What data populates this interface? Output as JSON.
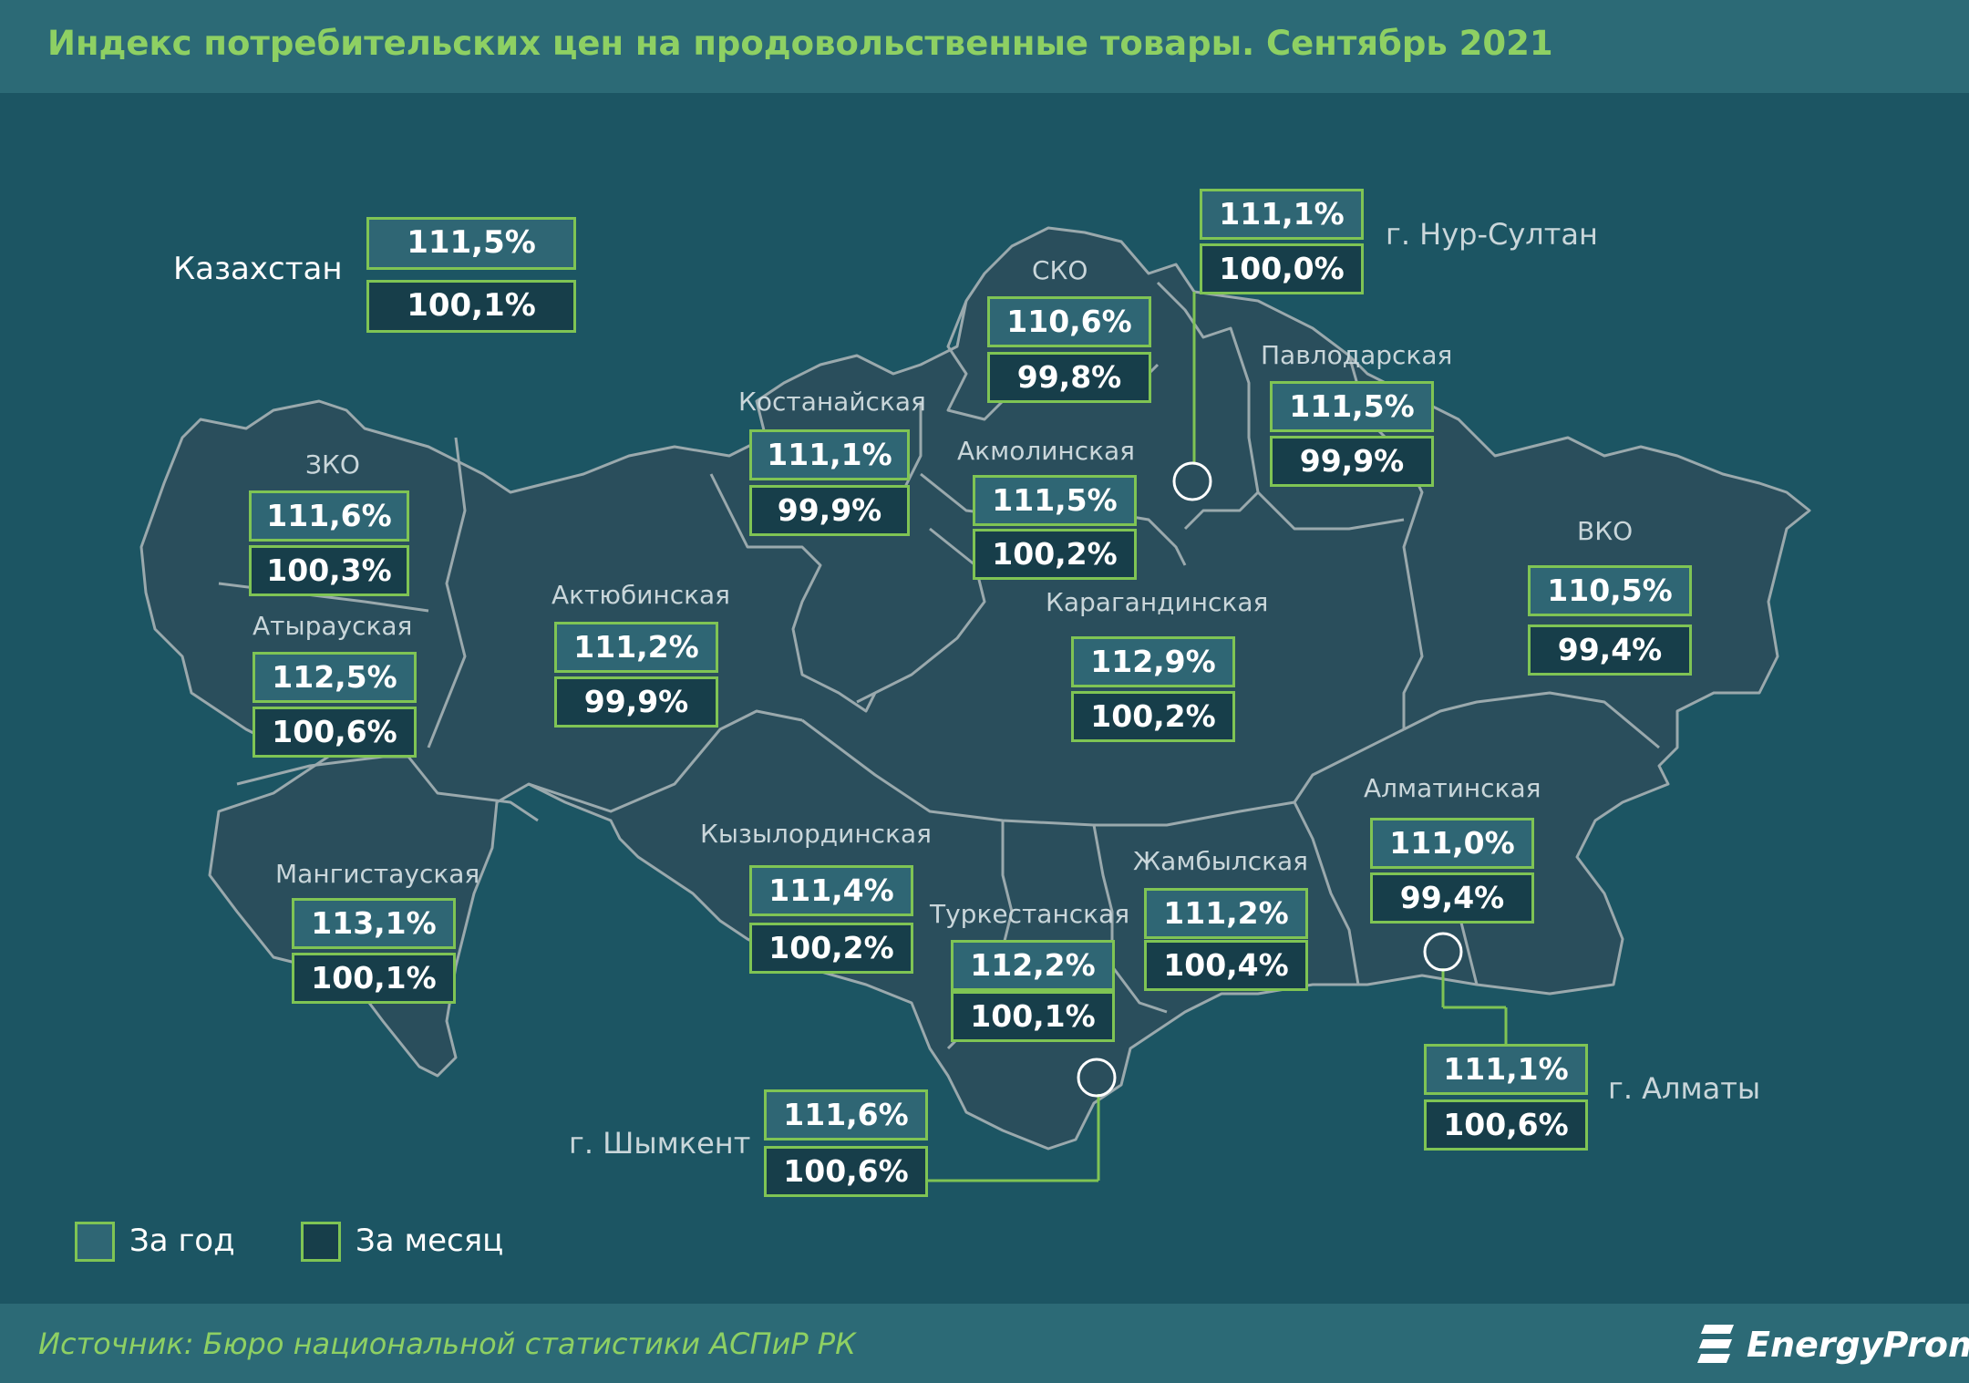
{
  "title": "Индекс потребительских цен на продовольственные товары. Сентябрь 2021",
  "source": "Источник: Бюро национальной статистики АСПиР РК",
  "brand": "EnergyProm",
  "legend": {
    "year": "За год",
    "month": "За месяц"
  },
  "colors": {
    "year_box": "#2f6674",
    "month_box": "#173e4a",
    "accent": "#7fc454",
    "title": "#8ed063",
    "background": "#1c5563"
  },
  "kazakhstan": {
    "name": "Казахстан",
    "year": "111,5%",
    "month": "100,1%"
  },
  "regions": {
    "zko": {
      "name": "ЗКО",
      "year": "111,6%",
      "month": "100,3%"
    },
    "atyrau": {
      "name": "Атырауская",
      "year": "112,5%",
      "month": "100,6%"
    },
    "mangystau": {
      "name": "Мангистауская",
      "year": "113,1%",
      "month": "100,1%"
    },
    "aktobe": {
      "name": "Актюбинская",
      "year": "111,2%",
      "month": "99,9%"
    },
    "kostanay": {
      "name": "Костанайская",
      "year": "111,1%",
      "month": "99,9%"
    },
    "sko": {
      "name": "СКО",
      "year": "110,6%",
      "month": "99,8%"
    },
    "akmola": {
      "name": "Акмолинская",
      "year": "111,5%",
      "month": "100,2%"
    },
    "pavlodar": {
      "name": "Павлодарская",
      "year": "111,5%",
      "month": "99,9%"
    },
    "vko": {
      "name": "ВКО",
      "year": "110,5%",
      "month": "99,4%"
    },
    "karaganda": {
      "name": "Карагандинская",
      "year": "112,9%",
      "month": "100,2%"
    },
    "kyzylorda": {
      "name": "Кызылординская",
      "year": "111,4%",
      "month": "100,2%"
    },
    "turkestan": {
      "name": "Туркестанская",
      "year": "112,2%",
      "month": "100,1%"
    },
    "zhambyl": {
      "name": "Жамбылская",
      "year": "111,2%",
      "month": "100,4%"
    },
    "almaty_reg": {
      "name": "Алматинская",
      "year": "111,0%",
      "month": "99,4%"
    }
  },
  "cities": {
    "nur_sultan": {
      "name": "г. Нур-Султан",
      "year": "111,1%",
      "month": "100,0%"
    },
    "almaty": {
      "name": "г. Алматы",
      "year": "111,1%",
      "month": "100,6%"
    },
    "shymkent": {
      "name": "г. Шымкент",
      "year": "111,6%",
      "month": "100,6%"
    }
  }
}
